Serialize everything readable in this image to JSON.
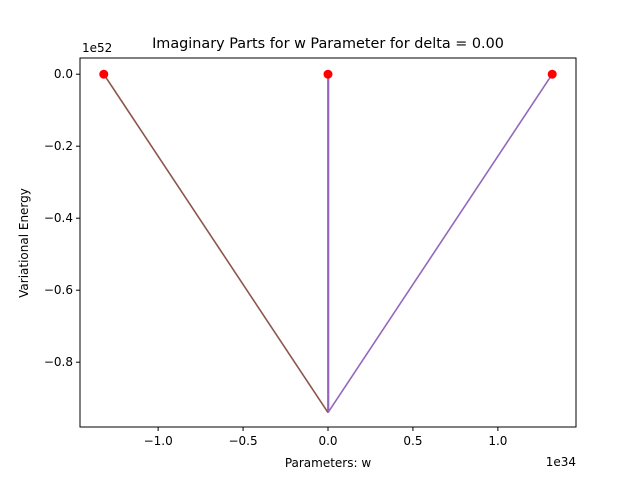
{
  "chart_data": {
    "type": "line",
    "title": "Imaginary Parts for w Parameter for delta = 0.00",
    "xlabel": "Parameters: w",
    "ylabel": "Variational Energy",
    "x_offset_label": "1e34",
    "y_offset_label": "1e52",
    "xlim": [
      -1.46,
      1.46
    ],
    "ylim": [
      -0.98,
      0.045
    ],
    "x_ticks": [
      -1.0,
      -0.5,
      0.0,
      0.5,
      1.0
    ],
    "x_tick_labels": [
      "−1.0",
      "−0.5",
      "0.0",
      "0.5",
      "1.0"
    ],
    "y_ticks": [
      0.0,
      -0.2,
      -0.4,
      -0.6,
      -0.8
    ],
    "y_tick_labels": [
      "0.0",
      "−0.2",
      "−0.4",
      "−0.6",
      "−0.8"
    ],
    "grid": false,
    "series": [
      {
        "color": "#8c564b",
        "x": [
          -1.32,
          0.0
        ],
        "y": [
          0.0,
          -0.94
        ]
      },
      {
        "color": "#9467bd",
        "x": [
          1.32,
          0.0
        ],
        "y": [
          0.0,
          -0.94
        ]
      },
      {
        "color": "#8c564b",
        "x": [
          0.0,
          0.0
        ],
        "y": [
          0.0,
          -0.94
        ]
      },
      {
        "color": "#9467bd",
        "x": [
          0.003,
          0.003
        ],
        "y": [
          0.0,
          -0.94
        ]
      }
    ],
    "markers": {
      "color": "#ff0000",
      "x": [
        -1.32,
        0.0,
        1.32
      ],
      "y": [
        0.0,
        0.0,
        0.0
      ]
    }
  }
}
